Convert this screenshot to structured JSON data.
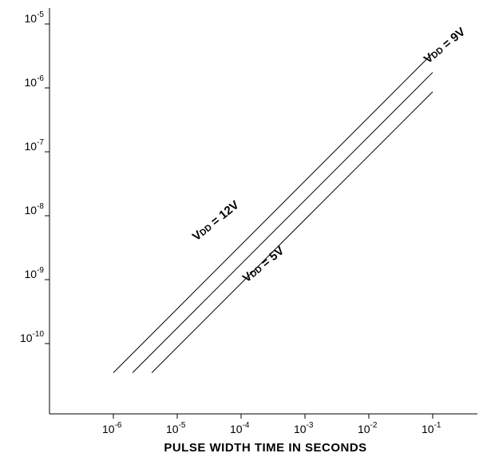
{
  "chart_data": {
    "type": "line",
    "title": "",
    "xlabel": "PULSE WIDTH TIME IN SECONDS",
    "ylabel": "",
    "x_scale": "log",
    "y_scale": "log",
    "xlim": [
      1e-07,
      0.1
    ],
    "ylim": [
      1e-11,
      1e-05
    ],
    "grid": false,
    "x_ticks": [
      {
        "base": "10",
        "exp": "-6",
        "value": 1e-06
      },
      {
        "base": "10",
        "exp": "-5",
        "value": 1e-05
      },
      {
        "base": "10",
        "exp": "-4",
        "value": 0.0001
      },
      {
        "base": "10",
        "exp": "-3",
        "value": 0.001
      },
      {
        "base": "10",
        "exp": "-2",
        "value": 0.01
      },
      {
        "base": "10",
        "exp": "-1",
        "value": 0.1
      }
    ],
    "y_ticks": [
      {
        "base": "10",
        "exp": "-5",
        "value": 1e-05
      },
      {
        "base": "10",
        "exp": "-6",
        "value": 1e-06
      },
      {
        "base": "10",
        "exp": "-7",
        "value": 1e-07
      },
      {
        "base": "10",
        "exp": "-8",
        "value": 1e-08
      },
      {
        "base": "10",
        "exp": "-9",
        "value": 1e-09
      },
      {
        "base": "10",
        "exp": "-10",
        "value": 1e-10
      }
    ],
    "series": [
      {
        "name": "VDD = 12V",
        "label_prefix": "V",
        "label_sub": "DD",
        "label_suffix": " = 12V",
        "x": [
          1e-06,
          0.1
        ],
        "y": [
          3.5e-11,
          3.5e-06
        ]
      },
      {
        "name": "VDD = 9V",
        "label_prefix": "V",
        "label_sub": "DD",
        "label_suffix": " = 9V",
        "x": [
          2e-06,
          0.1
        ],
        "y": [
          3.5e-11,
          1.75e-06
        ]
      },
      {
        "name": "VDD = 5V",
        "label_prefix": "V",
        "label_sub": "DD",
        "label_suffix": " = 5V",
        "x": [
          4e-06,
          0.1
        ],
        "y": [
          3.5e-11,
          8.7e-07
        ]
      }
    ]
  }
}
